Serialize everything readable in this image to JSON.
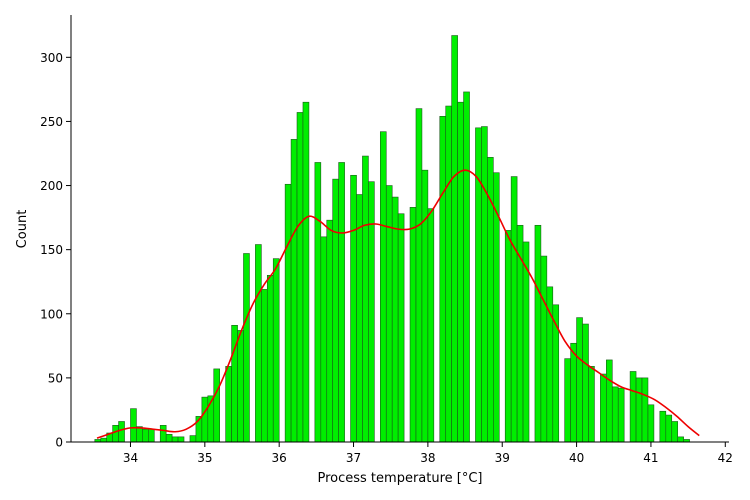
{
  "chart_data": {
    "type": "bar",
    "title": "",
    "xlabel": "Process temperature [°C]",
    "ylabel": "Count",
    "xlim": [
      33.2,
      42.05
    ],
    "ylim": [
      0,
      333
    ],
    "xticks": [
      34,
      35,
      36,
      37,
      38,
      39,
      40,
      41,
      42
    ],
    "yticks": [
      0,
      50,
      100,
      150,
      200,
      250,
      300
    ],
    "grid": false,
    "legend": "none",
    "colors": {
      "bar_fill": "#00ee00",
      "bar_edge": "#1a5a1a",
      "kde_line": "#ee0000"
    },
    "histogram": {
      "bin_start": 33.52,
      "bin_width": 0.08,
      "counts": [
        2,
        3,
        7,
        13,
        16,
        0,
        26,
        12,
        10,
        10,
        0,
        13,
        6,
        4,
        4,
        0,
        5,
        20,
        35,
        36,
        57,
        0,
        59,
        91,
        87,
        147,
        0,
        154,
        119,
        130,
        143,
        0,
        201,
        236,
        257,
        265,
        0,
        218,
        160,
        173,
        205,
        218,
        0,
        208,
        193,
        223,
        203,
        0,
        242,
        200,
        191,
        178,
        0,
        183,
        260,
        212,
        182,
        0,
        254,
        262,
        317,
        265,
        273,
        0,
        245,
        246,
        222,
        210,
        0,
        165,
        207,
        169,
        156,
        0,
        169,
        145,
        121,
        107,
        0,
        65,
        77,
        97,
        92,
        59,
        0,
        53,
        64,
        43,
        42,
        0,
        55,
        50,
        50,
        29,
        0,
        24,
        21,
        16,
        4,
        2
      ]
    },
    "kde": {
      "x": [
        33.55,
        33.7,
        33.85,
        34.0,
        34.15,
        34.3,
        34.45,
        34.6,
        34.75,
        34.9,
        35.05,
        35.2,
        35.35,
        35.5,
        35.65,
        35.8,
        35.95,
        36.1,
        36.25,
        36.4,
        36.55,
        36.7,
        36.85,
        37.0,
        37.15,
        37.3,
        37.45,
        37.6,
        37.75,
        37.9,
        38.05,
        38.2,
        38.35,
        38.5,
        38.65,
        38.8,
        38.95,
        39.1,
        39.25,
        39.4,
        39.55,
        39.7,
        39.85,
        40.0,
        40.15,
        40.3,
        40.45,
        40.6,
        40.75,
        40.9,
        41.05,
        41.2,
        41.35,
        41.5,
        41.65
      ],
      "y": [
        3,
        6,
        9,
        11,
        11,
        10,
        9,
        8,
        10,
        16,
        28,
        44,
        65,
        88,
        108,
        123,
        135,
        152,
        168,
        176,
        172,
        165,
        163,
        165,
        169,
        170,
        168,
        166,
        166,
        170,
        180,
        194,
        207,
        212,
        207,
        193,
        176,
        158,
        143,
        128,
        111,
        94,
        78,
        67,
        60,
        54,
        48,
        43,
        40,
        37,
        33,
        27,
        20,
        12,
        5
      ]
    }
  }
}
